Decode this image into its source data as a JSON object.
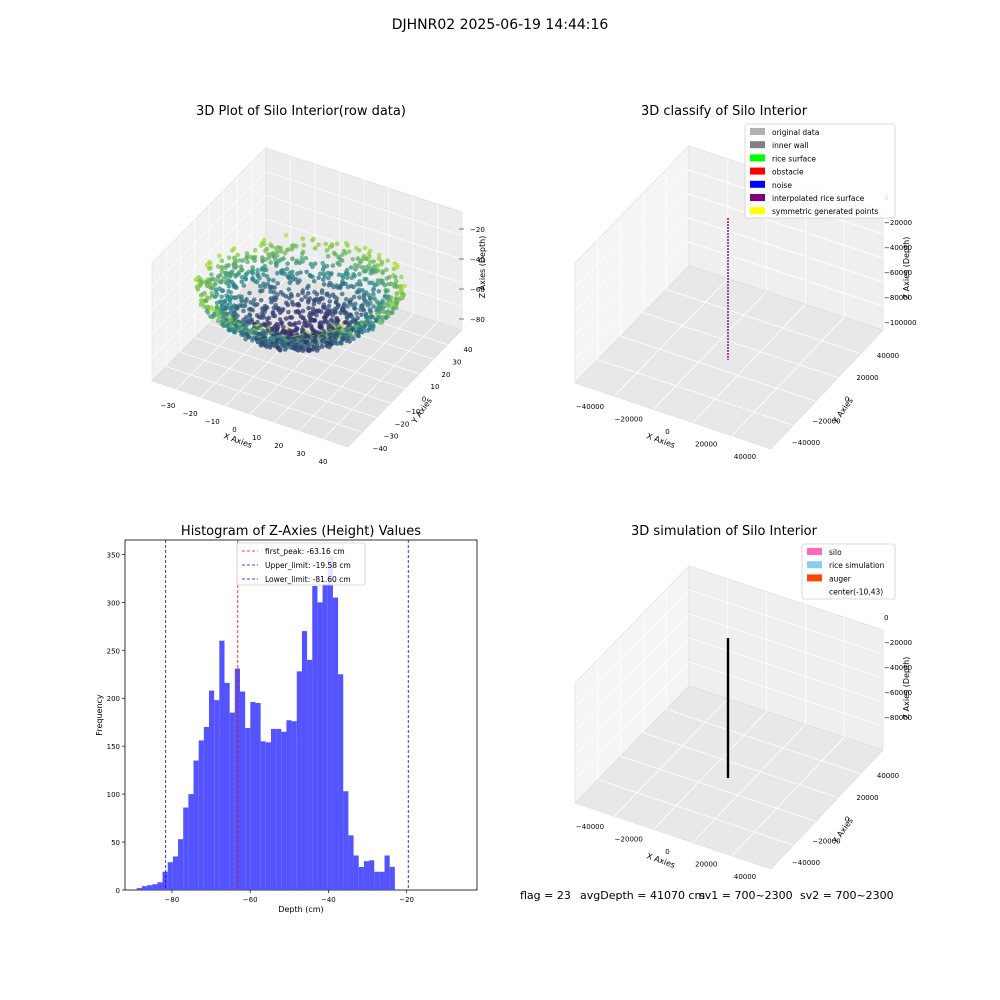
{
  "figure": {
    "suptitle": "DJHNR02 2025-06-19 14:44:16",
    "status": {
      "flag": "flag = 23",
      "avg_depth": "avgDepth = 41070 cm",
      "sv1": "sv1 = 700~2300",
      "sv2": "sv2 = 700~2300"
    }
  },
  "colors": {
    "histogram_bar": "#4a4aff",
    "peak_line": "#ff0000",
    "limit_line": "#0000ff",
    "pane": "#f2f2f2",
    "points_low": "#3b2a6b",
    "points_mid": "#2a8a8c",
    "points_high": "#9bd93c",
    "points_top": "#e8f01a"
  },
  "chart_data": [
    {
      "type": "scatter",
      "subtype": "3d",
      "title": "3D Plot of Silo Interior(row data)",
      "xlabel": "X Axies",
      "ylabel": "Y Axies",
      "zlabel": "Z Axies (Depth)",
      "x_ticks": [
        "−30",
        "−20",
        "−10",
        "0",
        "10",
        "20",
        "30",
        "40"
      ],
      "y_ticks": [
        "−40",
        "−30",
        "−20",
        "−10",
        "0",
        "10",
        "20",
        "30",
        "40"
      ],
      "z_ticks": [
        "−20",
        "−40",
        "−60",
        "−80"
      ],
      "xlim": [
        -35,
        45
      ],
      "ylim": [
        -45,
        45
      ],
      "zlim": [
        -90,
        -10
      ],
      "colormap": "viridis",
      "description_of_values": "rice surface point cloud, depth approximately -90 to -15 cm, bowl shaped (deep center, high rim)"
    },
    {
      "type": "scatter",
      "subtype": "3d",
      "title": "3D classify of Silo Interior",
      "xlabel": "X Axies",
      "ylabel": "Y Axies",
      "zlabel": "Z Axies (Depth)",
      "x_ticks": [
        "−40000",
        "−20000",
        "0",
        "20000",
        "40000"
      ],
      "y_ticks": [
        "−40000",
        "−20000",
        "0",
        "20000",
        "40000"
      ],
      "z_ticks": [
        "0",
        "−20000",
        "−40000",
        "−60000",
        "−80000",
        "−100000"
      ],
      "legend": [
        {
          "name": "original data",
          "color": "#b0b0b0"
        },
        {
          "name": "inner wall",
          "color": "#808080"
        },
        {
          "name": "rice surface",
          "color": "#00ff00"
        },
        {
          "name": "obstacle",
          "color": "#ff0000"
        },
        {
          "name": "noise",
          "color": "#0000ff"
        },
        {
          "name": "interpolated rice surface",
          "color": "#800080"
        },
        {
          "name": "symmetric generated points",
          "color": "#ffff00"
        }
      ],
      "legend_loc": "upper right"
    },
    {
      "type": "bar",
      "subtype": "histogram",
      "title": "Histogram of Z-Axies (Height) Values",
      "xlabel": "Depth (cm)",
      "ylabel": "Frequency",
      "xlim": [
        -92,
        -2
      ],
      "ylim": [
        0,
        365
      ],
      "x_ticks": [
        -80,
        -60,
        -40,
        -20
      ],
      "y_ticks": [
        0,
        50,
        100,
        150,
        200,
        250,
        300,
        350
      ],
      "bin_start": -89.0,
      "bin_width": 1.32,
      "values": [
        2,
        4,
        5,
        6,
        8,
        19,
        29,
        35,
        53,
        86,
        100,
        135,
        156,
        170,
        208,
        198,
        260,
        216,
        185,
        231,
        207,
        169,
        196,
        195,
        155,
        154,
        168,
        168,
        165,
        177,
        176,
        228,
        270,
        240,
        317,
        300,
        319,
        348,
        305,
        225,
        103,
        57,
        36,
        24,
        30,
        31,
        19,
        19,
        36,
        24
      ],
      "vlines": [
        {
          "x": -63.16,
          "label": "first_peak: -63.16 cm",
          "color": "#ff0000"
        },
        {
          "x": -19.58,
          "label": "Upper_limit: -19.58 cm",
          "color": "#0000ff"
        },
        {
          "x": -81.6,
          "label": "Lower_limit: -81.60 cm",
          "color": "#0000ff"
        }
      ],
      "legend_loc": "upper center"
    },
    {
      "type": "area",
      "subtype": "3d-surface",
      "title": "3D simulation of Silo Interior",
      "xlabel": "X Axies",
      "ylabel": "Y Axies",
      "zlabel": "Z Axies (Depth)",
      "x_ticks": [
        "−40000",
        "−20000",
        "0",
        "20000",
        "40000"
      ],
      "y_ticks": [
        "−40000",
        "−20000",
        "0",
        "20000",
        "40000"
      ],
      "z_ticks": [
        "0",
        "−20000",
        "−40000",
        "−60000",
        "−80000"
      ],
      "legend": [
        {
          "name": "silo",
          "color": "#ff69b4"
        },
        {
          "name": "rice simulation",
          "color": "#87ceeb"
        },
        {
          "name": "auger",
          "color": "#ff4500"
        },
        {
          "name": "center(-10,43)",
          "color": ""
        }
      ],
      "legend_loc": "upper right"
    }
  ]
}
